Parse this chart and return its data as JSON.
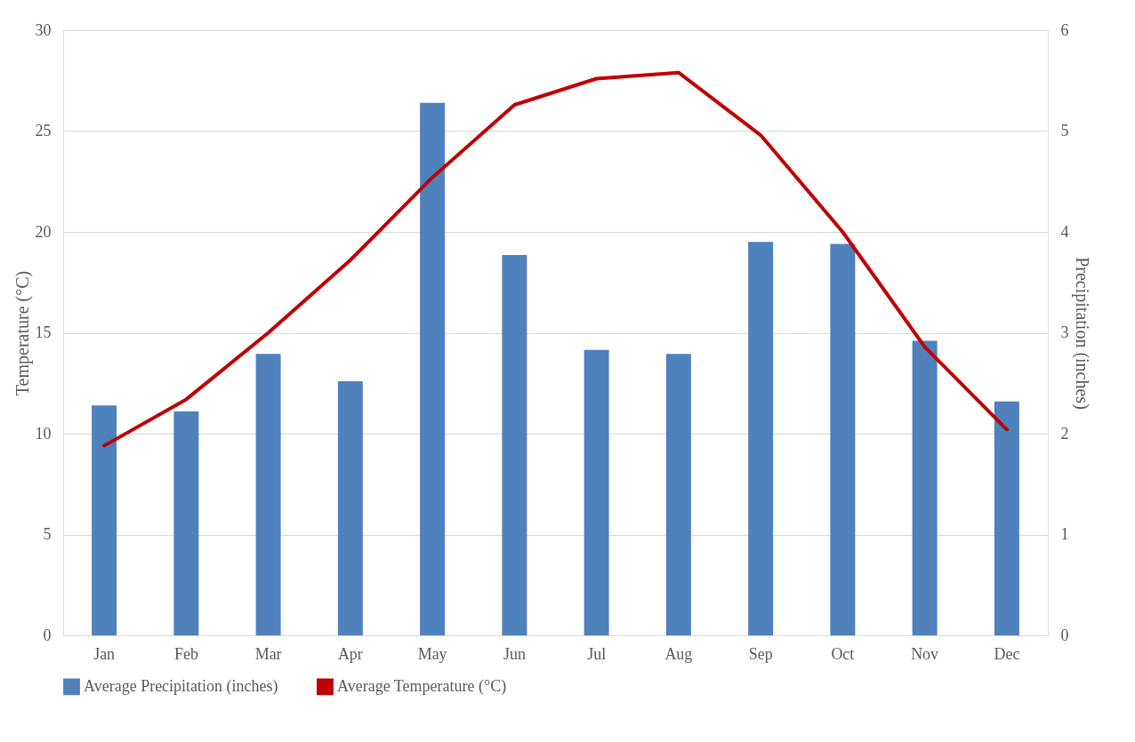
{
  "chart_data": {
    "type": "bar",
    "categories": [
      "Jan",
      "Feb",
      "Mar",
      "Apr",
      "May",
      "Jun",
      "Jul",
      "Aug",
      "Sep",
      "Oct",
      "Nov",
      "Dec"
    ],
    "series": [
      {
        "name": "Average Precipitation (inches)",
        "axis": "y2",
        "color": "#4f81bd",
        "values": [
          2.28,
          2.22,
          2.79,
          2.52,
          5.28,
          3.77,
          2.83,
          2.79,
          3.9,
          3.88,
          2.92,
          2.32
        ]
      },
      {
        "name": "Average Temperature (°C)",
        "type": "line",
        "axis": "y",
        "color": "#c00000",
        "values": [
          9.4,
          11.7,
          15.0,
          18.6,
          22.7,
          26.3,
          27.6,
          27.9,
          24.8,
          20.0,
          14.3,
          10.2
        ]
      }
    ],
    "ylabel": "Temperature (°C)",
    "y2label": "Precipitation (inches)",
    "ylim": [
      0,
      30
    ],
    "yticks": [
      0,
      5,
      10,
      15,
      20,
      25,
      30
    ],
    "y2lim": [
      0,
      6
    ],
    "y2ticks": [
      0,
      1,
      2,
      3,
      4,
      5,
      6
    ],
    "grid": "y",
    "legend": "bottom",
    "line_style": "solid"
  }
}
